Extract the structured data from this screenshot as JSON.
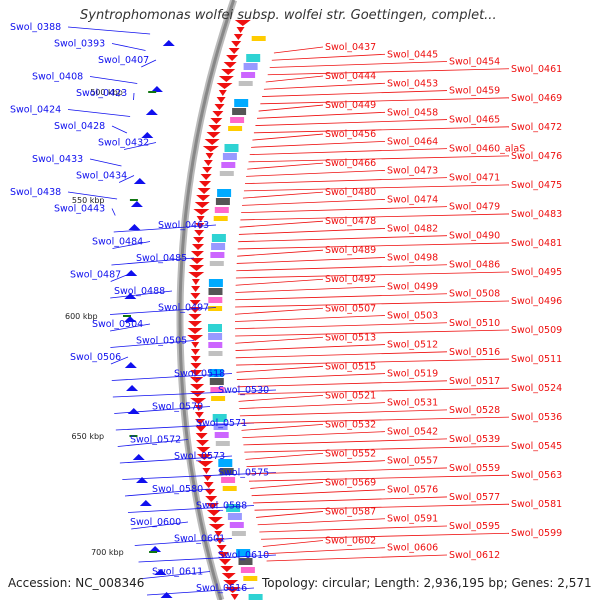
{
  "title": "Syntrophomonas wolfei subsp. wolfei str. Goettingen, complet...",
  "footer": {
    "accession": "Accession: NC_008346",
    "summary": "Topology: circular; Length: 2,936,195 bp; Genes: 2,571"
  },
  "colors": {
    "forward_strand": "#1010ee",
    "reverse_strand": "#ee1010",
    "backbone": "#888888",
    "tick": "#117711"
  },
  "kbp_ticks": [
    "500 kbp",
    "550 kbp",
    "600 kbp",
    "650 kbp",
    "700 kbp"
  ],
  "left_labels": [
    "Swol_0388",
    "Swol_0393",
    "Swol_0407",
    "Swol_0408",
    "Swol_0423",
    "Swol_0424",
    "Swol_0428",
    "Swol_0432",
    "Swol_0433",
    "Swol_0434",
    "Swol_0438",
    "Swol_0443",
    "Swol_0463",
    "Swol_0484",
    "Swol_0485",
    "Swol_0487",
    "Swol_0488",
    "Swol_0497",
    "Swol_0504",
    "Swol_0505",
    "Swol_0506",
    "Swol_0518",
    "Swol_0530",
    "Swol_0570",
    "Swol_0571",
    "Swol_0572",
    "Swol_0573",
    "Swol_0575",
    "Swol_0580",
    "Swol_0588",
    "Swol_0600",
    "Swol_0601",
    "Swol_0610",
    "Swol_0611",
    "Swol_0616"
  ],
  "right_labels": [
    "Swol_0437",
    "Swol_0445",
    "Swol_0454",
    "Swol_0461",
    "Swol_0444",
    "Swol_0453",
    "Swol_0459",
    "Swol_0469",
    "Swol_0449",
    "Swol_0458",
    "Swol_0465",
    "Swol_0472",
    "Swol_0456",
    "Swol_0464",
    "Swol_0460_alaS",
    "Swol_0476",
    "Swol_0466",
    "Swol_0473",
    "Swol_0471",
    "Swol_0475",
    "Swol_0480",
    "Swol_0474",
    "Swol_0479",
    "Swol_0483",
    "Swol_0478",
    "Swol_0482",
    "Swol_0490",
    "Swol_0481",
    "Swol_0489",
    "Swol_0498",
    "Swol_0486",
    "Swol_0495",
    "Swol_0492",
    "Swol_0499",
    "Swol_0508",
    "Swol_0496",
    "Swol_0507",
    "Swol_0503",
    "Swol_0510",
    "Swol_0509",
    "Swol_0513",
    "Swol_0512",
    "Swol_0516",
    "Swol_0511",
    "Swol_0515",
    "Swol_0519",
    "Swol_0517",
    "Swol_0524",
    "Swol_0521",
    "Swol_0531",
    "Swol_0528",
    "Swol_0536",
    "Swol_0532",
    "Swol_0542",
    "Swol_0539",
    "Swol_0545",
    "Swol_0552",
    "Swol_0557",
    "Swol_0559",
    "Swol_0563",
    "Swol_0569",
    "Swol_0576",
    "Swol_0577",
    "Swol_0581",
    "Swol_0587",
    "Swol_0591",
    "Swol_0595",
    "Swol_0599",
    "Swol_0602",
    "Swol_0606",
    "Swol_0612"
  ]
}
